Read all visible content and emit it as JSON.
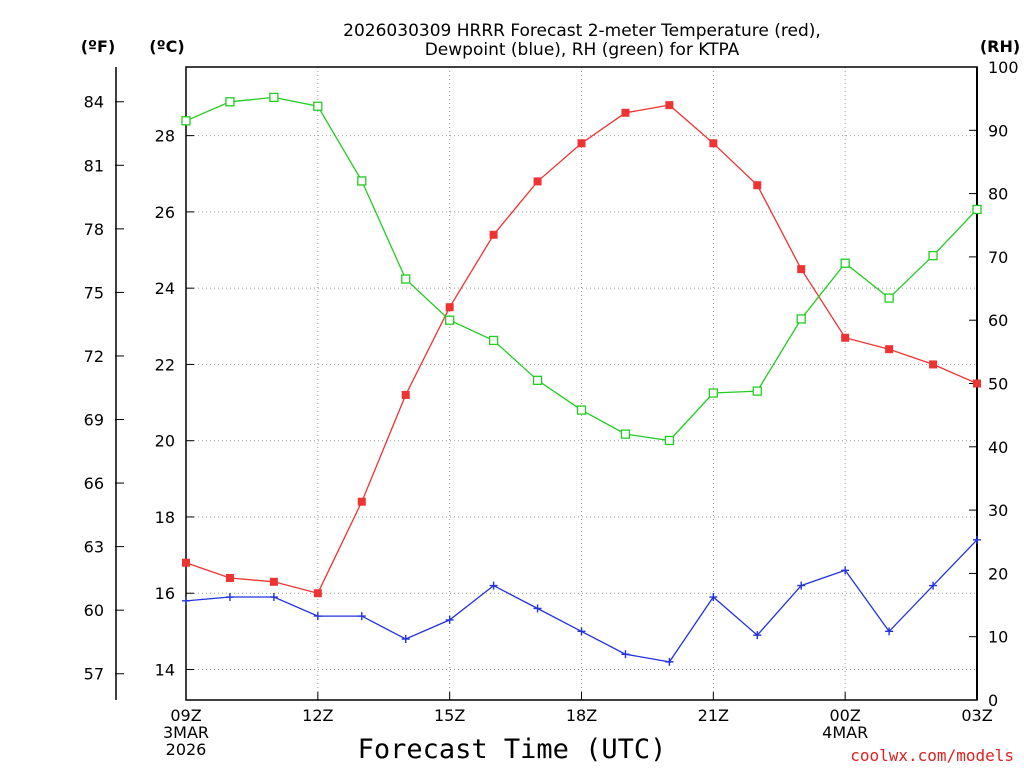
{
  "chart_data": {
    "type": "line",
    "title_lines": [
      "2026030309 HRRR Forecast 2-meter Temperature (red),",
      "Dewpoint (blue), RH (green) for KTPA"
    ],
    "xlabel": "Forecast Time (UTC)",
    "credit": "coolwx.com/models",
    "units": {
      "fahrenheit": "(ºF)",
      "celsius": "(ºC)",
      "rh": "(RH)"
    },
    "x_hours": [
      0,
      1,
      2,
      3,
      4,
      5,
      6,
      7,
      8,
      9,
      10,
      11,
      12,
      13,
      14,
      15,
      16,
      17,
      18
    ],
    "x_ticks": [
      {
        "hour": 0,
        "label": "09Z",
        "sub": [
          "3MAR",
          "2026"
        ]
      },
      {
        "hour": 3,
        "label": "12Z",
        "sub": []
      },
      {
        "hour": 6,
        "label": "15Z",
        "sub": []
      },
      {
        "hour": 9,
        "label": "18Z",
        "sub": []
      },
      {
        "hour": 12,
        "label": "21Z",
        "sub": []
      },
      {
        "hour": 15,
        "label": "00Z",
        "sub": [
          "4MAR"
        ]
      },
      {
        "hour": 18,
        "label": "03Z",
        "sub": []
      }
    ],
    "xlim": [
      0,
      18
    ],
    "celsius_axis": {
      "ylim": [
        13.2,
        29.8
      ],
      "ticks": [
        14,
        16,
        18,
        20,
        22,
        24,
        26,
        28
      ]
    },
    "fahrenheit_ticks": [
      57,
      60,
      63,
      66,
      69,
      72,
      75,
      78,
      81,
      84
    ],
    "rh_axis": {
      "ylim": [
        0,
        100
      ],
      "ticks": [
        0,
        10,
        20,
        30,
        40,
        50,
        60,
        70,
        80,
        90,
        100
      ]
    },
    "series": [
      {
        "name": "Temperature",
        "axis": "celsius",
        "color": "#ee3333",
        "marker": "filled-square",
        "values": [
          16.8,
          16.4,
          16.3,
          16.0,
          18.4,
          21.2,
          23.5,
          25.4,
          26.8,
          27.8,
          28.6,
          28.8,
          27.8,
          26.7,
          24.5,
          22.7,
          22.4,
          22.0,
          21.5
        ]
      },
      {
        "name": "Dewpoint",
        "axis": "celsius",
        "color": "#2233dd",
        "marker": "plus",
        "values": [
          15.8,
          15.9,
          15.9,
          15.4,
          15.4,
          14.8,
          15.3,
          16.2,
          15.6,
          15.0,
          14.4,
          14.2,
          15.9,
          14.9,
          16.2,
          16.6,
          15.0,
          16.2,
          17.4
        ]
      },
      {
        "name": "RH",
        "axis": "rh",
        "color": "#22cc22",
        "marker": "open-square",
        "values": [
          91.5,
          94.5,
          95.2,
          93.8,
          82.0,
          66.5,
          60.0,
          56.8,
          50.5,
          45.8,
          42.0,
          41.0,
          48.5,
          48.8,
          60.2,
          69.0,
          63.5,
          70.2,
          77.5
        ]
      }
    ]
  }
}
